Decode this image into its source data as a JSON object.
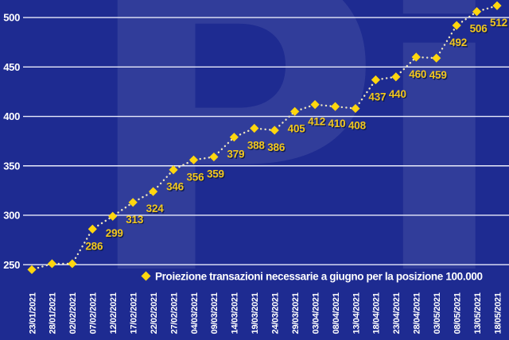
{
  "watermark": {
    "text": "Pi."
  },
  "legend": {
    "label": "Proiezione transazioni necessarie a giugno per la posizione 100.000",
    "marker": "diamond-icon"
  },
  "colors": {
    "background": "#1e2b91",
    "gridline": "#e8eafb",
    "axis_text": "#ffffff",
    "marker_yellow": "#ffd60e",
    "dot_line": "#ece4bf",
    "value_label": "#f2c71d",
    "value_label_shadow": "#101c52",
    "legend_text": "#ffffff",
    "watermark_tint": "rgba(255,255,255,0.085)"
  },
  "chart_data": {
    "type": "line",
    "line_style": "dotted",
    "marker": "diamond",
    "title": "",
    "xlabel": "",
    "ylabel": "",
    "grid": "horizontal",
    "legend_position": "bottom",
    "x": [
      "23/01/2021",
      "28/01/2021",
      "02/02/2021",
      "07/02/2021",
      "12/02/2021",
      "17/02/2021",
      "22/02/2021",
      "27/02/2021",
      "04/03/2021",
      "09/03/2021",
      "14/03/2021",
      "19/03/2021",
      "24/03/2021",
      "29/03/2021",
      "03/04/2021",
      "08/04/2021",
      "13/04/2021",
      "18/04/2021",
      "23/04/2021",
      "28/04/2021",
      "03/05/2021",
      "08/05/2021",
      "13/05/2021",
      "18/05/2021"
    ],
    "series": [
      {
        "name": "Proiezione transazioni necessarie a giugno per la posizione 100.000",
        "values": [
          245,
          251,
          251,
          286,
          299,
          313,
          324,
          346,
          356,
          359,
          379,
          388,
          386,
          405,
          412,
          410,
          408,
          437,
          440,
          460,
          459,
          492,
          506,
          512
        ]
      }
    ],
    "point_labels": [
      "",
      "",
      "",
      "286",
      "299",
      "313",
      "324",
      "346",
      "356",
      "359",
      "379",
      "388",
      "386",
      "405",
      "412",
      "410",
      "408",
      "437",
      "440",
      "460",
      "459",
      "492",
      "506",
      "512"
    ],
    "yticks": [
      250,
      300,
      350,
      400,
      450,
      500
    ],
    "ylim": [
      232,
      520
    ]
  }
}
